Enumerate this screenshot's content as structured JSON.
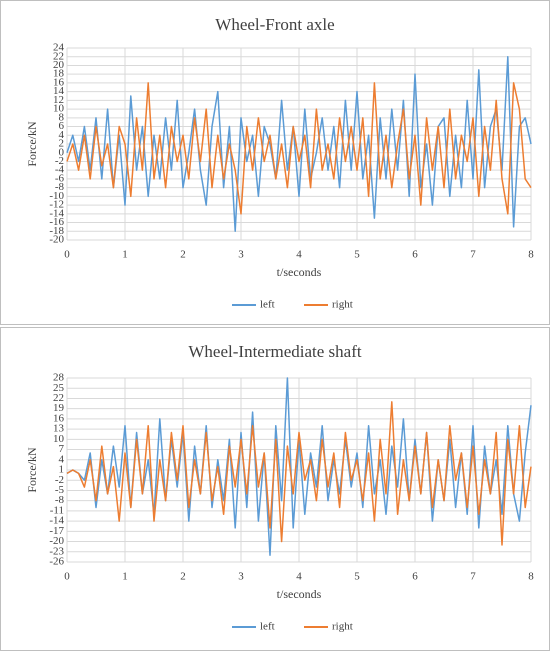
{
  "chart_data": [
    {
      "type": "line",
      "title": "Wheel-Front axle",
      "x_label": "t/seconds",
      "y_label": "Force/kN",
      "x": [
        0,
        0.1,
        0.2,
        0.3,
        0.4,
        0.5,
        0.6,
        0.7,
        0.8,
        0.9,
        1,
        1.1,
        1.2,
        1.3,
        1.4,
        1.5,
        1.6,
        1.7,
        1.8,
        1.9,
        2,
        2.1,
        2.2,
        2.3,
        2.4,
        2.5,
        2.6,
        2.7,
        2.8,
        2.9,
        3,
        3.1,
        3.2,
        3.3,
        3.4,
        3.5,
        3.6,
        3.7,
        3.8,
        3.9,
        4,
        4.1,
        4.2,
        4.3,
        4.4,
        4.5,
        4.6,
        4.7,
        4.8,
        4.9,
        5,
        5.1,
        5.2,
        5.3,
        5.4,
        5.5,
        5.6,
        5.7,
        5.8,
        5.9,
        6,
        6.1,
        6.2,
        6.3,
        6.4,
        6.5,
        6.6,
        6.7,
        6.8,
        6.9,
        7,
        7.1,
        7.2,
        7.3,
        7.4,
        7.5,
        7.6,
        7.7,
        7.8,
        7.9,
        8
      ],
      "series": [
        {
          "name": "left",
          "color": "#5b9bd5",
          "values": [
            0,
            4,
            -2,
            6,
            -4,
            8,
            -6,
            10,
            -8,
            4,
            -12,
            13,
            -4,
            6,
            -10,
            4,
            -6,
            8,
            -4,
            12,
            -8,
            0,
            10,
            -4,
            -12,
            6,
            14,
            -8,
            6,
            -18,
            8,
            -2,
            4,
            -10,
            6,
            2,
            -6,
            12,
            -4,
            6,
            -10,
            10,
            -6,
            0,
            8,
            -4,
            6,
            -8,
            12,
            -4,
            14,
            -6,
            4,
            -15,
            8,
            -6,
            10,
            -4,
            12,
            -10,
            18,
            -8,
            2,
            -12,
            6,
            8,
            -10,
            4,
            -8,
            12,
            -6,
            19,
            -8,
            6,
            10,
            -4,
            22,
            -17,
            6,
            8,
            2
          ]
        },
        {
          "name": "right",
          "color": "#ed7d31",
          "values": [
            -2,
            2,
            -4,
            4,
            -6,
            6,
            -3,
            2,
            -8,
            6,
            2,
            -10,
            8,
            -4,
            16,
            -6,
            4,
            -8,
            6,
            -2,
            4,
            -6,
            8,
            -2,
            10,
            -8,
            4,
            -6,
            2,
            -4,
            -14,
            6,
            -4,
            8,
            -2,
            4,
            -6,
            2,
            -8,
            6,
            -2,
            4,
            -8,
            10,
            -4,
            2,
            -6,
            8,
            -2,
            6,
            -4,
            8,
            -10,
            16,
            -6,
            4,
            -8,
            2,
            10,
            -6,
            4,
            -12,
            8,
            -4,
            6,
            -8,
            10,
            -6,
            4,
            -2,
            8,
            -10,
            6,
            -4,
            12,
            -6,
            -14,
            16,
            10,
            -6,
            -8
          ]
        }
      ],
      "xlim": [
        0,
        8
      ],
      "xticks": [
        0,
        1,
        2,
        3,
        4,
        5,
        6,
        7,
        8
      ],
      "ylim": [
        -20,
        24
      ],
      "yticks": [
        -20,
        -18,
        -16,
        -14,
        -12,
        -10,
        -8,
        -6,
        -4,
        -2,
        0,
        2,
        4,
        6,
        8,
        10,
        12,
        14,
        16,
        18,
        20,
        22,
        24
      ],
      "grid": true,
      "legend": "bottom"
    },
    {
      "type": "line",
      "title": "Wheel-Intermediate shaft",
      "x_label": "t/seconds",
      "y_label": "Force/kN",
      "x": [
        0,
        0.1,
        0.2,
        0.3,
        0.4,
        0.5,
        0.6,
        0.7,
        0.8,
        0.9,
        1,
        1.1,
        1.2,
        1.3,
        1.4,
        1.5,
        1.6,
        1.7,
        1.8,
        1.9,
        2,
        2.1,
        2.2,
        2.3,
        2.4,
        2.5,
        2.6,
        2.7,
        2.8,
        2.9,
        3,
        3.1,
        3.2,
        3.3,
        3.4,
        3.5,
        3.6,
        3.7,
        3.8,
        3.9,
        4,
        4.1,
        4.2,
        4.3,
        4.4,
        4.5,
        4.6,
        4.7,
        4.8,
        4.9,
        5,
        5.1,
        5.2,
        5.3,
        5.4,
        5.5,
        5.6,
        5.7,
        5.8,
        5.9,
        6,
        6.1,
        6.2,
        6.3,
        6.4,
        6.5,
        6.6,
        6.7,
        6.8,
        6.9,
        7,
        7.1,
        7.2,
        7.3,
        7.4,
        7.5,
        7.6,
        7.7,
        7.8,
        7.9,
        8
      ],
      "series": [
        {
          "name": "left",
          "color": "#5b9bd5",
          "values": [
            0,
            1,
            0,
            -2,
            6,
            -10,
            4,
            -6,
            8,
            -4,
            14,
            -10,
            12,
            -6,
            4,
            -12,
            16,
            -8,
            10,
            -4,
            12,
            -14,
            8,
            -6,
            14,
            -10,
            4,
            -8,
            10,
            -16,
            12,
            -10,
            18,
            -14,
            6,
            -24,
            14,
            -8,
            28,
            -16,
            10,
            -12,
            6,
            -4,
            14,
            -8,
            4,
            -6,
            10,
            -4,
            6,
            -10,
            14,
            -6,
            4,
            -12,
            8,
            -4,
            16,
            -8,
            10,
            -6,
            12,
            -14,
            4,
            -8,
            10,
            -10,
            6,
            -12,
            14,
            -16,
            8,
            -6,
            4,
            -12,
            14,
            -6,
            -14,
            6,
            20
          ]
        },
        {
          "name": "right",
          "color": "#ed7d31",
          "values": [
            0,
            1,
            0,
            -4,
            4,
            -8,
            8,
            -6,
            2,
            -14,
            6,
            -10,
            10,
            -6,
            14,
            -14,
            4,
            -8,
            12,
            -2,
            14,
            -10,
            4,
            -6,
            12,
            -8,
            2,
            -12,
            8,
            -4,
            10,
            -6,
            14,
            -4,
            6,
            -16,
            10,
            -20,
            8,
            -6,
            12,
            -2,
            4,
            -8,
            10,
            -4,
            6,
            -10,
            12,
            -2,
            4,
            -8,
            6,
            -14,
            10,
            -6,
            21,
            -12,
            4,
            -8,
            8,
            -6,
            12,
            -10,
            4,
            -8,
            14,
            -2,
            6,
            -10,
            8,
            -12,
            4,
            -6,
            12,
            -21,
            10,
            -6,
            14,
            -10,
            2
          ]
        }
      ],
      "xlim": [
        0,
        8
      ],
      "xticks": [
        0,
        1,
        2,
        3,
        4,
        5,
        6,
        7,
        8
      ],
      "ylim": [
        -26,
        28
      ],
      "yticks": [
        -26,
        -23,
        -20,
        -17,
        -14,
        -11,
        -8,
        -5,
        -2,
        1,
        4,
        7,
        10,
        13,
        16,
        19,
        22,
        25,
        28
      ],
      "grid": true,
      "legend": "bottom"
    }
  ]
}
